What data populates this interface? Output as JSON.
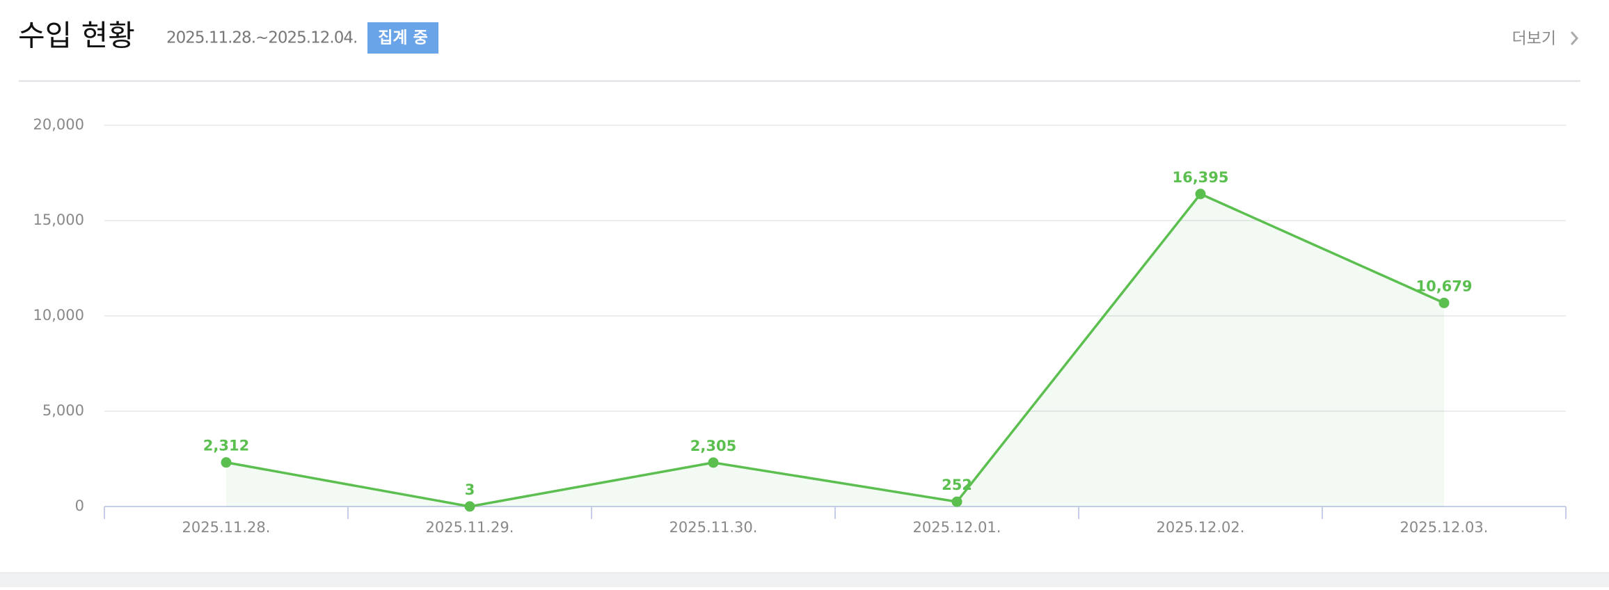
{
  "header": {
    "title": "수입 현황",
    "period": "2025.11.28.~2025.12.04.",
    "badge": "집계 중",
    "more": "더보기"
  },
  "chart_data": {
    "type": "line",
    "categories": [
      "2025.11.28.",
      "2025.11.29.",
      "2025.11.30.",
      "2025.12.01.",
      "2025.12.02.",
      "2025.12.03."
    ],
    "series": [
      {
        "color": "#5bbf4f",
        "values": [
          2312,
          3,
          2305,
          252,
          16395,
          10679
        ],
        "value_labels": [
          "2,312",
          "3",
          "2,305",
          "252",
          "16,395",
          "10,679"
        ]
      }
    ],
    "ylim": [
      0,
      20000
    ],
    "yticks": [
      0,
      {
        "value": 5000,
        "label": "5,000"
      },
      {
        "value": 10000,
        "label": "10,000"
      },
      {
        "value": 15000,
        "label": "15,000"
      },
      {
        "value": 20000,
        "label": "20,000"
      }
    ],
    "grid": true
  }
}
